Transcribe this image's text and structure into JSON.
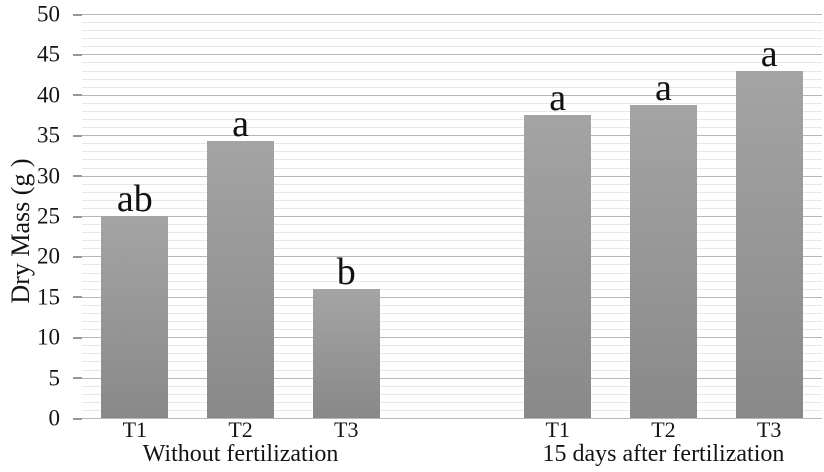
{
  "chart_data": {
    "type": "bar",
    "title": "",
    "xlabel": "",
    "ylabel": "Dry Mass (g )",
    "ylim": [
      0,
      50
    ],
    "y_major_step": 5,
    "y_minor_step": 1,
    "y_tick_labels": [
      "0",
      "5",
      "10",
      "15",
      "20",
      "25",
      "30",
      "35",
      "40",
      "45",
      "50"
    ],
    "grid": "horizontal, minor every 1 unit, major every 5 units",
    "legend": "none",
    "groups": [
      {
        "label": "Without fertilization",
        "bars": [
          {
            "category": "T1",
            "value": 25.0,
            "letter": "ab"
          },
          {
            "category": "T2",
            "value": 34.3,
            "letter": "a"
          },
          {
            "category": "T3",
            "value": 16.0,
            "letter": "b"
          }
        ]
      },
      {
        "label": "15 days after fertilization",
        "bars": [
          {
            "category": "T1",
            "value": 37.5,
            "letter": "a"
          },
          {
            "category": "T2",
            "value": 38.8,
            "letter": "a"
          },
          {
            "category": "T3",
            "value": 43.0,
            "letter": "a"
          }
        ]
      }
    ],
    "colors": {
      "bar_top": "#a4a4a4",
      "bar_bottom": "#898989",
      "grid_minor": "#e8e8e8",
      "grid_major": "#b7b7b7",
      "tick": "#979797",
      "text": "#141414",
      "background": "#ffffff"
    }
  }
}
